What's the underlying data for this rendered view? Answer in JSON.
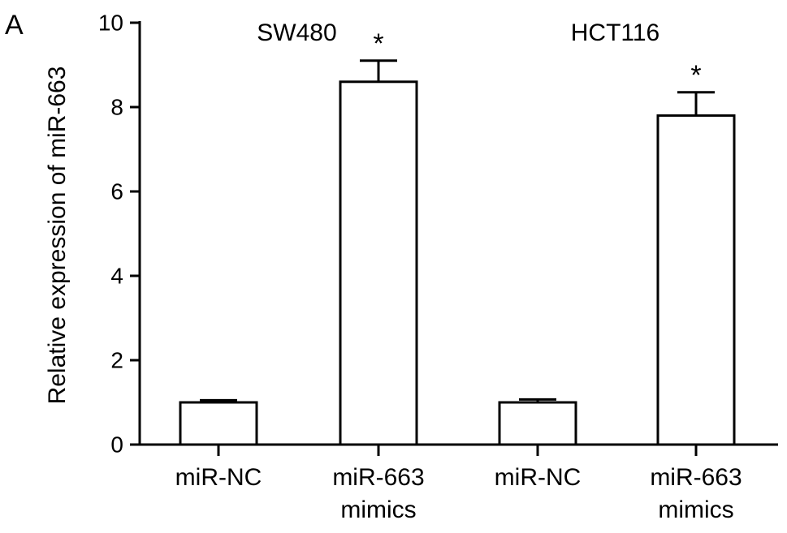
{
  "panel_label": "A",
  "chart_data": {
    "type": "bar",
    "ylabel": "Relative expression of miR-663",
    "ylim": [
      0,
      10
    ],
    "yticks": [
      0,
      2,
      4,
      6,
      8,
      10
    ],
    "groups": [
      {
        "title": "SW480",
        "bars": [
          {
            "label": [
              "miR-NC"
            ],
            "value": 1.0,
            "error": 0.05,
            "annotation": ""
          },
          {
            "label": [
              "miR-663",
              "mimics"
            ],
            "value": 8.6,
            "error": 0.5,
            "annotation": "*"
          }
        ]
      },
      {
        "title": "HCT116",
        "bars": [
          {
            "label": [
              "miR-NC"
            ],
            "value": 1.0,
            "error": 0.07,
            "annotation": ""
          },
          {
            "label": [
              "miR-663",
              "mimics"
            ],
            "value": 7.8,
            "error": 0.55,
            "annotation": "*"
          }
        ]
      }
    ],
    "bar_fill": "#ffffff",
    "bar_stroke": "#000000"
  }
}
